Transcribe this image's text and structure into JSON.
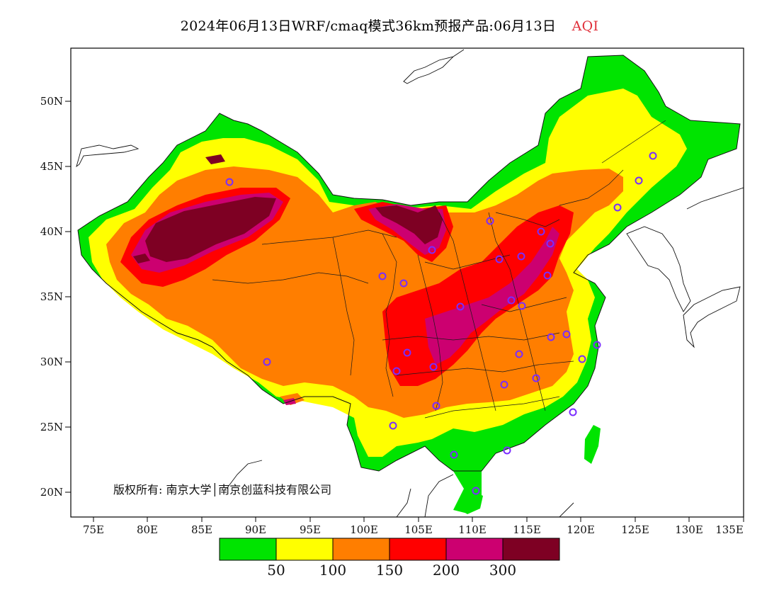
{
  "title": {
    "main": "2024年06月13日WRF/cmaq模式36km预报产品:06月13日",
    "variable": "AQI",
    "variable_color": "#e0303a"
  },
  "copyright": "版权所有: 南京大学│南京创蓝科技有限公司",
  "axes": {
    "lat_labels": [
      "50N",
      "45N",
      "40N",
      "35N",
      "30N",
      "25N",
      "20N"
    ],
    "lon_labels": [
      "75E",
      "80E",
      "85E",
      "90E",
      "95E",
      "100E",
      "105E",
      "110E",
      "115E",
      "120E",
      "125E",
      "130E",
      "135E"
    ]
  },
  "legend": {
    "colors": [
      "#00e400",
      "#ffff00",
      "#ff7e00",
      "#ff0000",
      "#cc0070",
      "#7e0023"
    ],
    "labels": [
      "50",
      "100",
      "150",
      "200",
      "300"
    ]
  }
}
